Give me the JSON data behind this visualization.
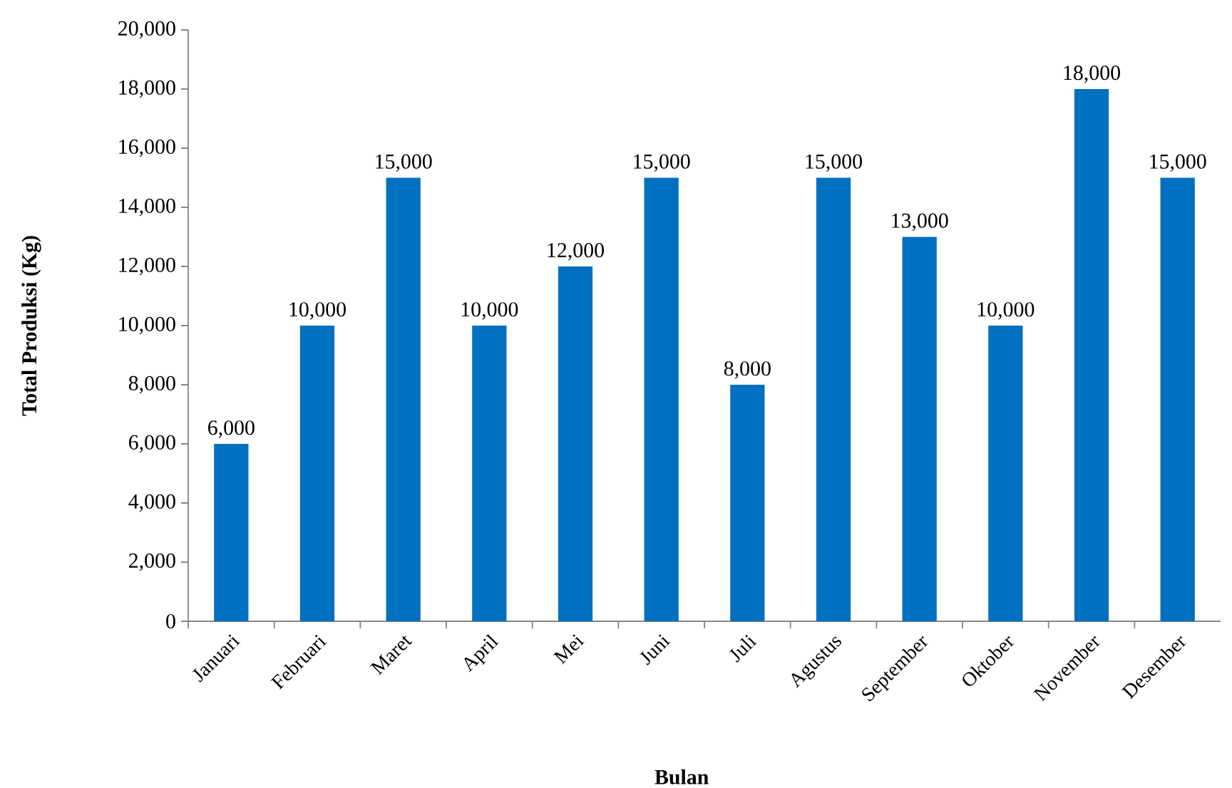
{
  "chart_data": {
    "type": "bar",
    "xlabel": "Bulan",
    "ylabel": "Total Produksi (Kg)",
    "categories": [
      "Januari",
      "Februari",
      "Maret",
      "April",
      "Mei",
      "Juni",
      "Juli",
      "Agustus",
      "September",
      "Oktober",
      "November",
      "Desember"
    ],
    "values": [
      6000,
      10000,
      15000,
      10000,
      12000,
      15000,
      8000,
      15000,
      13000,
      10000,
      18000,
      15000
    ],
    "value_labels": [
      "6,000",
      "10,000",
      "15,000",
      "10,000",
      "12,000",
      "15,000",
      "8,000",
      "15,000",
      "13,000",
      "10,000",
      "18,000",
      "15,000"
    ],
    "color": "#0070c0",
    "ylim": [
      0,
      20000
    ],
    "yticks": [
      0,
      {
        "value": 2000,
        "label": "2,000"
      },
      {
        "value": 4000,
        "label": "4,000"
      },
      {
        "value": 6000,
        "label": "6,000"
      },
      {
        "value": 8000,
        "label": "8,000"
      },
      {
        "value": 10000,
        "label": "10,000"
      },
      {
        "value": 12000,
        "label": "12,000"
      },
      {
        "value": 14000,
        "label": "14,000"
      },
      {
        "value": 16000,
        "label": "16,000"
      },
      {
        "value": 18000,
        "label": "18,000"
      },
      {
        "value": 20000,
        "label": "20,000"
      }
    ]
  }
}
